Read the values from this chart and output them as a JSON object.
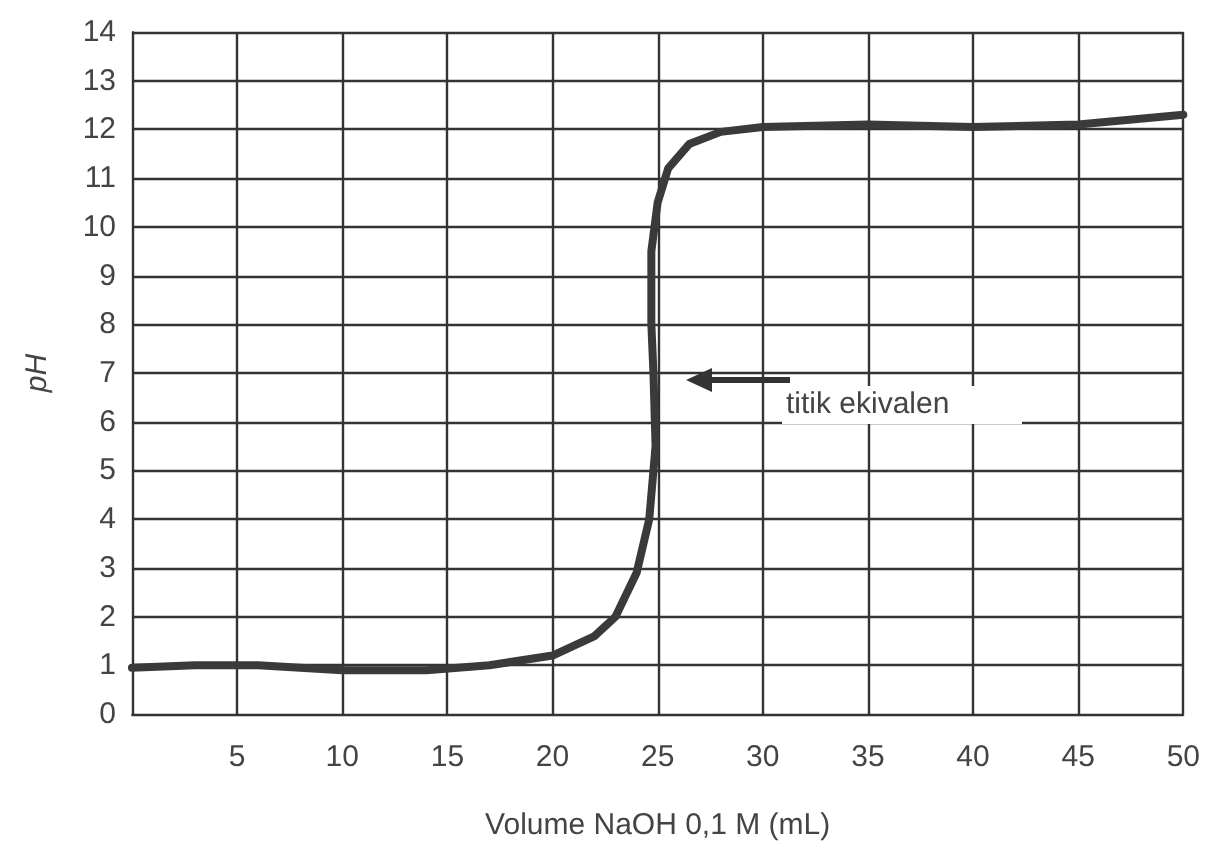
{
  "chart_data": {
    "type": "line",
    "xlabel": "Volume NaOH 0,1 M (mL)",
    "ylabel": "pH",
    "x": [
      0,
      3,
      6,
      10,
      14,
      17,
      20,
      22,
      23,
      24,
      24.6,
      24.9,
      24.8,
      24.7,
      24.7,
      25,
      25.5,
      26.5,
      28,
      30,
      35,
      40,
      45,
      50
    ],
    "series": [
      {
        "color": "#3a3a3a",
        "values": [
          0.95,
          1.0,
          1.0,
          0.9,
          0.9,
          1.0,
          1.2,
          1.6,
          2.0,
          2.9,
          4,
          5.5,
          7,
          8,
          9.5,
          10.5,
          11.2,
          11.7,
          11.95,
          12.05,
          12.1,
          12.05,
          12.1,
          12.3
        ]
      }
    ],
    "xlim": [
      0,
      50
    ],
    "xticks": [
      5,
      10,
      15,
      20,
      25,
      30,
      35,
      40,
      45,
      50
    ],
    "ylim": [
      0,
      14
    ],
    "yticks": [
      0,
      1,
      2,
      3,
      4,
      5,
      6,
      7,
      8,
      9,
      10,
      11,
      12,
      13,
      14
    ],
    "grid": true,
    "marker": "none",
    "line_style": "solid",
    "annotations": [
      "titik ekivalen"
    ]
  }
}
